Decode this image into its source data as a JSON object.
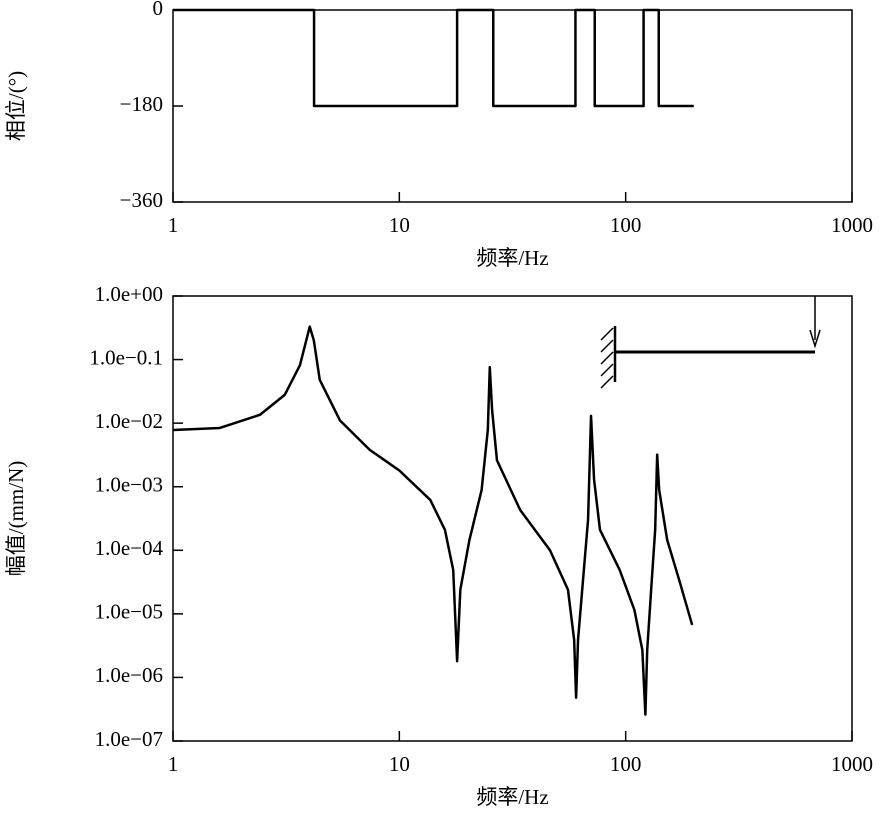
{
  "chart_data": [
    {
      "type": "line",
      "x_label": "频率/Hz",
      "y_label": "相位/(°)",
      "xscale": "log",
      "yscale": "linear",
      "xlim": [
        1,
        1000
      ],
      "ylim": [
        -360,
        0
      ],
      "xticks": [
        1,
        10,
        100,
        1000
      ],
      "yticks": [
        {
          "value": -360,
          "label": "−360"
        },
        {
          "value": -180,
          "label": "−180"
        },
        0
      ],
      "color": "#000000",
      "x": [
        1,
        4.2,
        4.2,
        18,
        18,
        26,
        26,
        60,
        60,
        73,
        73,
        120,
        120,
        140,
        140,
        200
      ],
      "values": [
        0,
        0,
        -180,
        -180,
        0,
        0,
        -180,
        -180,
        0,
        0,
        -180,
        -180,
        0,
        0,
        -180,
        -180
      ]
    },
    {
      "type": "line",
      "x_label": "频率/Hz",
      "y_label": "幅值/(mm/N)",
      "xscale": "log",
      "yscale": "log",
      "xlim": [
        1,
        1000
      ],
      "ylim": [
        1e-07,
        1
      ],
      "xticks": [
        1,
        10,
        100,
        1000
      ],
      "yticks": [
        {
          "value": 1,
          "label": "1.0e+00"
        },
        {
          "value": 0.1,
          "label": "1.0e−0.1"
        },
        {
          "value": 0.01,
          "label": "1.0e−02"
        },
        {
          "value": 0.001,
          "label": "1.0e−03"
        },
        {
          "value": 0.0001,
          "label": "1.0e−04"
        },
        {
          "value": 1e-05,
          "label": "1.0e−05"
        },
        {
          "value": 1e-06,
          "label": "1.0e−06"
        },
        {
          "value": 1e-07,
          "label": "1.0e−07"
        }
      ],
      "color": "#000000",
      "x": [
        1,
        1.61,
        2.42,
        3.12,
        3.64,
        4.02,
        4.19,
        4.45,
        5.47,
        7.4,
        10,
        13.7,
        15.9,
        17.3,
        18,
        18.6,
        20.4,
        23.1,
        24.6,
        25.1,
        25.7,
        27,
        34.2,
        46.3,
        55.6,
        59.2,
        60.4,
        61.6,
        64.8,
        68.2,
        70.3,
        72.5,
        77,
        94.1,
        109.3,
        118.5,
        122.2,
        124.5,
        129.6,
        135,
        137.8,
        140.6,
        152.6,
        172.4,
        196.7
      ],
      "values": [
        0.0078,
        0.0084,
        0.0135,
        0.028,
        0.082,
        0.33,
        0.2,
        0.048,
        0.011,
        0.0038,
        0.0018,
        0.00062,
        0.00021,
        4.9e-05,
        1.8e-06,
        2.4e-05,
        0.000145,
        0.00089,
        0.0078,
        0.076,
        0.016,
        0.0026,
        0.00043,
        0.0001,
        2.4e-05,
        3.9e-06,
        4.8e-07,
        3.9e-06,
        3.4e-05,
        0.0003,
        0.013,
        0.0013,
        0.00021,
        4.9e-05,
        1.15e-05,
        2.7e-06,
        2.6e-07,
        2.7e-06,
        2.4e-05,
        0.00021,
        0.0032,
        0.00089,
        0.000145,
        3.4e-05,
        6.7e-06
      ]
    }
  ]
}
